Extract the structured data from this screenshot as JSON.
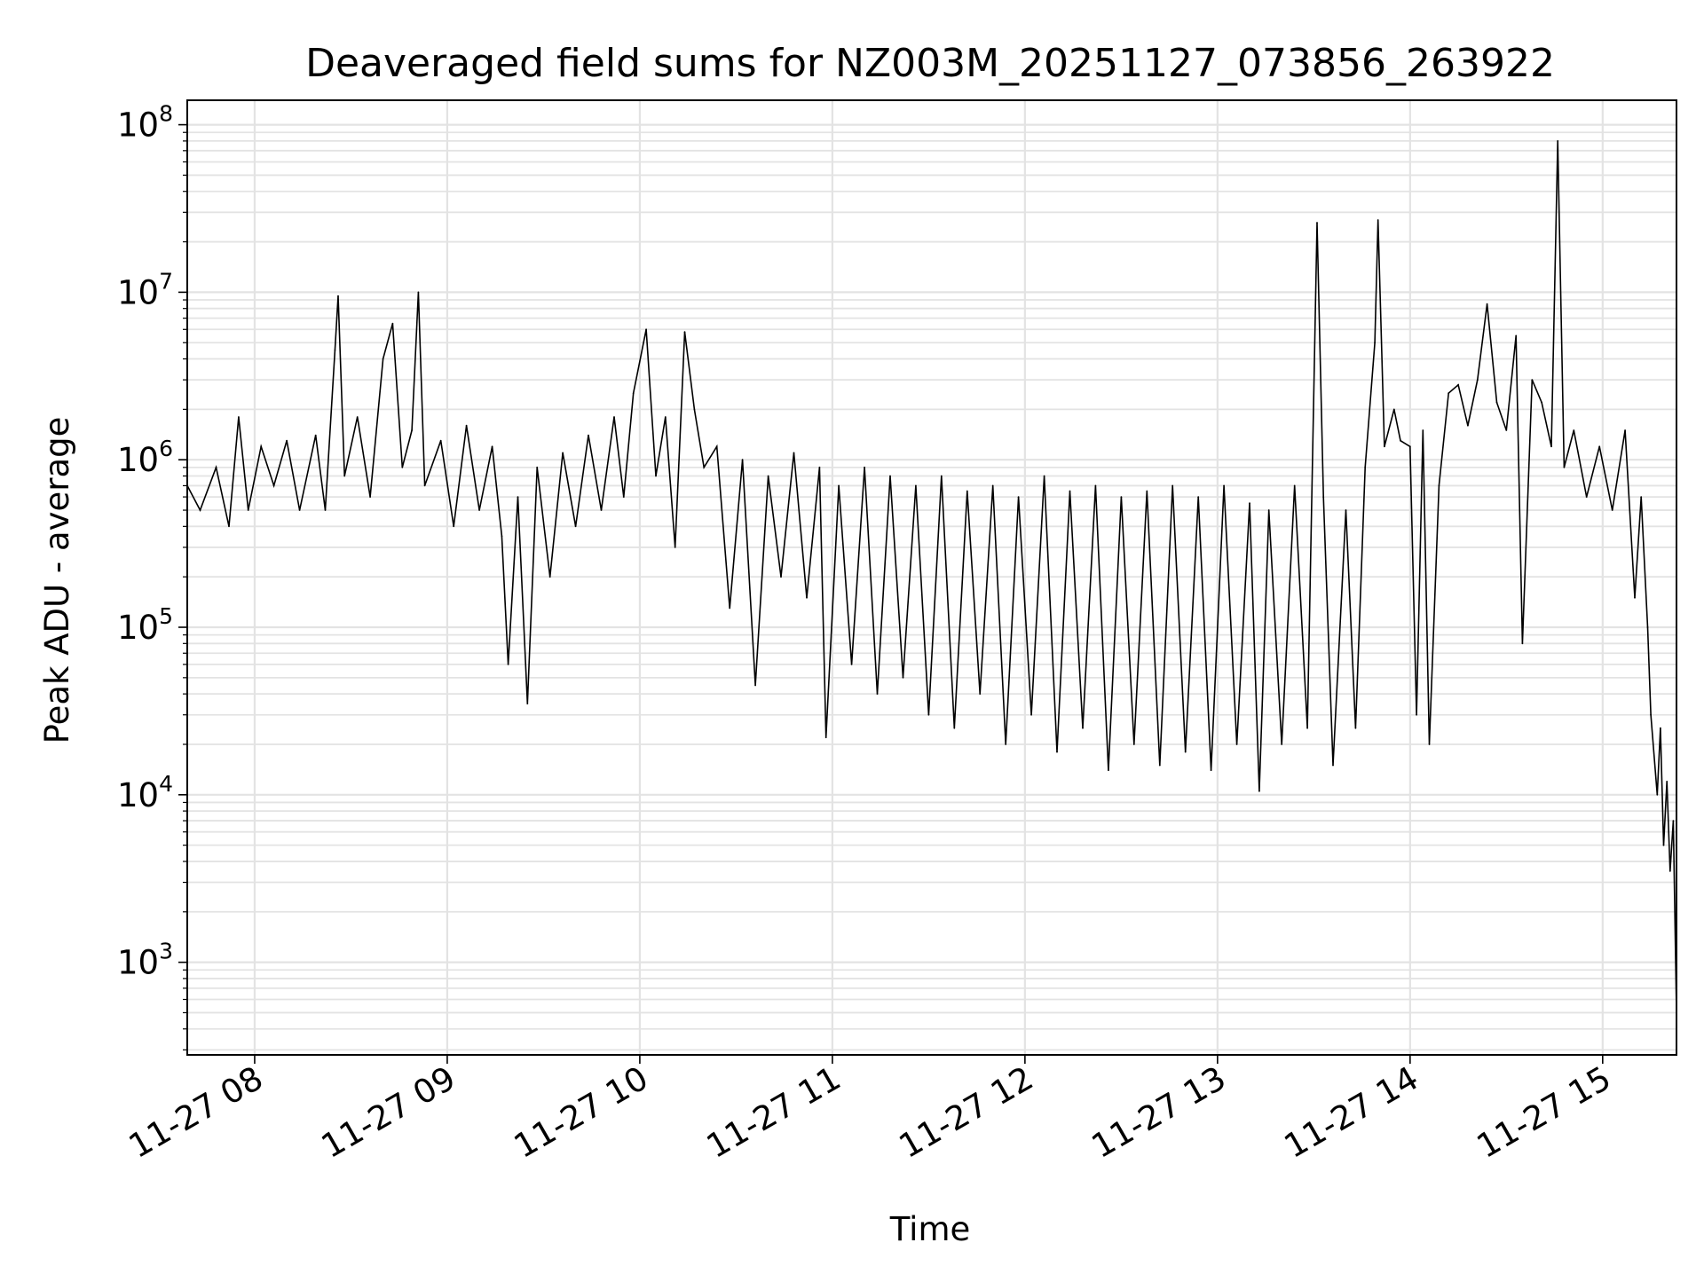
{
  "chart_data": {
    "type": "line",
    "title": "Deaveraged field sums for NZ003M_20251127_073856_263922",
    "xlabel": "Time",
    "ylabel": "Peak ADU - average",
    "yscale": "log",
    "xlim": [
      "2025-11-27 07:39",
      "2025-11-27 15:23"
    ],
    "ylim": [
      280,
      140000000
    ],
    "grid": true,
    "line_color": "#000000",
    "grid_color": "#e3e3e3",
    "x_tick_labels": [
      "11-27 08",
      "11-27 09",
      "11-27 10",
      "11-27 11",
      "11-27 12",
      "11-27 13",
      "11-27 14",
      "11-27 15"
    ],
    "y_tick_labels": [
      {
        "base": "10",
        "exp": "3"
      },
      {
        "base": "10",
        "exp": "4"
      },
      {
        "base": "10",
        "exp": "5"
      },
      {
        "base": "10",
        "exp": "6"
      },
      {
        "base": "10",
        "exp": "7"
      },
      {
        "base": "10",
        "exp": "8"
      }
    ],
    "series": [
      {
        "points": [
          [
            "07:39",
            700000
          ],
          [
            "07:43",
            500000
          ],
          [
            "07:48",
            900000
          ],
          [
            "07:52",
            400000
          ],
          [
            "07:55",
            1800000
          ],
          [
            "07:58",
            500000
          ],
          [
            "08:02",
            1200000
          ],
          [
            "08:06",
            700000
          ],
          [
            "08:10",
            1300000
          ],
          [
            "08:14",
            500000
          ],
          [
            "08:19",
            1400000
          ],
          [
            "08:22",
            500000
          ],
          [
            "08:25",
            4500000
          ],
          [
            "08:26",
            9500000
          ],
          [
            "08:28",
            800000
          ],
          [
            "08:32",
            1800000
          ],
          [
            "08:36",
            600000
          ],
          [
            "08:40",
            4000000
          ],
          [
            "08:43",
            6500000
          ],
          [
            "08:46",
            900000
          ],
          [
            "08:49",
            1500000
          ],
          [
            "08:51",
            10000000
          ],
          [
            "08:53",
            700000
          ],
          [
            "08:58",
            1300000
          ],
          [
            "09:02",
            400000
          ],
          [
            "09:06",
            1600000
          ],
          [
            "09:10",
            500000
          ],
          [
            "09:14",
            1200000
          ],
          [
            "09:17",
            350000
          ],
          [
            "09:19",
            60000
          ],
          [
            "09:22",
            600000
          ],
          [
            "09:25",
            35000
          ],
          [
            "09:28",
            900000
          ],
          [
            "09:32",
            200000
          ],
          [
            "09:36",
            1100000
          ],
          [
            "09:40",
            400000
          ],
          [
            "09:44",
            1400000
          ],
          [
            "09:48",
            500000
          ],
          [
            "09:52",
            1800000
          ],
          [
            "09:55",
            600000
          ],
          [
            "09:58",
            2500000
          ],
          [
            "10:02",
            6000000
          ],
          [
            "10:05",
            800000
          ],
          [
            "10:08",
            1800000
          ],
          [
            "10:11",
            300000
          ],
          [
            "10:14",
            5800000
          ],
          [
            "10:17",
            2000000
          ],
          [
            "10:20",
            900000
          ],
          [
            "10:24",
            1200000
          ],
          [
            "10:28",
            130000
          ],
          [
            "10:32",
            1000000
          ],
          [
            "10:36",
            45000
          ],
          [
            "10:40",
            800000
          ],
          [
            "10:44",
            200000
          ],
          [
            "10:48",
            1100000
          ],
          [
            "10:52",
            150000
          ],
          [
            "10:56",
            900000
          ],
          [
            "10:58",
            22000
          ],
          [
            "11:02",
            700000
          ],
          [
            "11:06",
            60000
          ],
          [
            "11:10",
            900000
          ],
          [
            "11:14",
            40000
          ],
          [
            "11:18",
            800000
          ],
          [
            "11:22",
            50000
          ],
          [
            "11:26",
            700000
          ],
          [
            "11:30",
            30000
          ],
          [
            "11:34",
            800000
          ],
          [
            "11:38",
            25000
          ],
          [
            "11:42",
            650000
          ],
          [
            "11:46",
            40000
          ],
          [
            "11:50",
            700000
          ],
          [
            "11:54",
            20000
          ],
          [
            "11:58",
            600000
          ],
          [
            "12:02",
            30000
          ],
          [
            "12:06",
            800000
          ],
          [
            "12:10",
            18000
          ],
          [
            "12:14",
            650000
          ],
          [
            "12:18",
            25000
          ],
          [
            "12:22",
            700000
          ],
          [
            "12:26",
            14000
          ],
          [
            "12:30",
            600000
          ],
          [
            "12:34",
            20000
          ],
          [
            "12:38",
            650000
          ],
          [
            "12:42",
            15000
          ],
          [
            "12:46",
            700000
          ],
          [
            "12:50",
            18000
          ],
          [
            "12:54",
            600000
          ],
          [
            "12:58",
            14000
          ],
          [
            "13:02",
            700000
          ],
          [
            "13:06",
            20000
          ],
          [
            "13:10",
            550000
          ],
          [
            "13:13",
            10500
          ],
          [
            "13:16",
            500000
          ],
          [
            "13:20",
            20000
          ],
          [
            "13:24",
            700000
          ],
          [
            "13:28",
            25000
          ],
          [
            "13:31",
            26000000
          ],
          [
            "13:33",
            600000
          ],
          [
            "13:36",
            15000
          ],
          [
            "13:40",
            500000
          ],
          [
            "13:43",
            25000
          ],
          [
            "13:46",
            900000
          ],
          [
            "13:49",
            5000000
          ],
          [
            "13:50",
            27000000
          ],
          [
            "13:52",
            1200000
          ],
          [
            "13:55",
            2000000
          ],
          [
            "13:57",
            1300000
          ],
          [
            "14:00",
            1200000
          ],
          [
            "14:02",
            30000
          ],
          [
            "14:04",
            1500000
          ],
          [
            "14:06",
            20000
          ],
          [
            "14:09",
            700000
          ],
          [
            "14:12",
            2500000
          ],
          [
            "14:15",
            2800000
          ],
          [
            "14:18",
            1600000
          ],
          [
            "14:21",
            3000000
          ],
          [
            "14:24",
            8500000
          ],
          [
            "14:27",
            2200000
          ],
          [
            "14:30",
            1500000
          ],
          [
            "14:33",
            5500000
          ],
          [
            "14:35",
            80000
          ],
          [
            "14:38",
            3000000
          ],
          [
            "14:41",
            2200000
          ],
          [
            "14:44",
            1200000
          ],
          [
            "14:46",
            80000000
          ],
          [
            "14:48",
            900000
          ],
          [
            "14:51",
            1500000
          ],
          [
            "14:55",
            600000
          ],
          [
            "14:59",
            1200000
          ],
          [
            "15:03",
            500000
          ],
          [
            "15:07",
            1500000
          ],
          [
            "15:10",
            150000
          ],
          [
            "15:12",
            600000
          ],
          [
            "15:14",
            100000
          ],
          [
            "15:15",
            30000
          ],
          [
            "15:17",
            10000
          ],
          [
            "15:18",
            25000
          ],
          [
            "15:19",
            5000
          ],
          [
            "15:20",
            12000
          ],
          [
            "15:21",
            3500
          ],
          [
            "15:22",
            7000
          ],
          [
            "15:23",
            500
          ]
        ]
      }
    ]
  }
}
